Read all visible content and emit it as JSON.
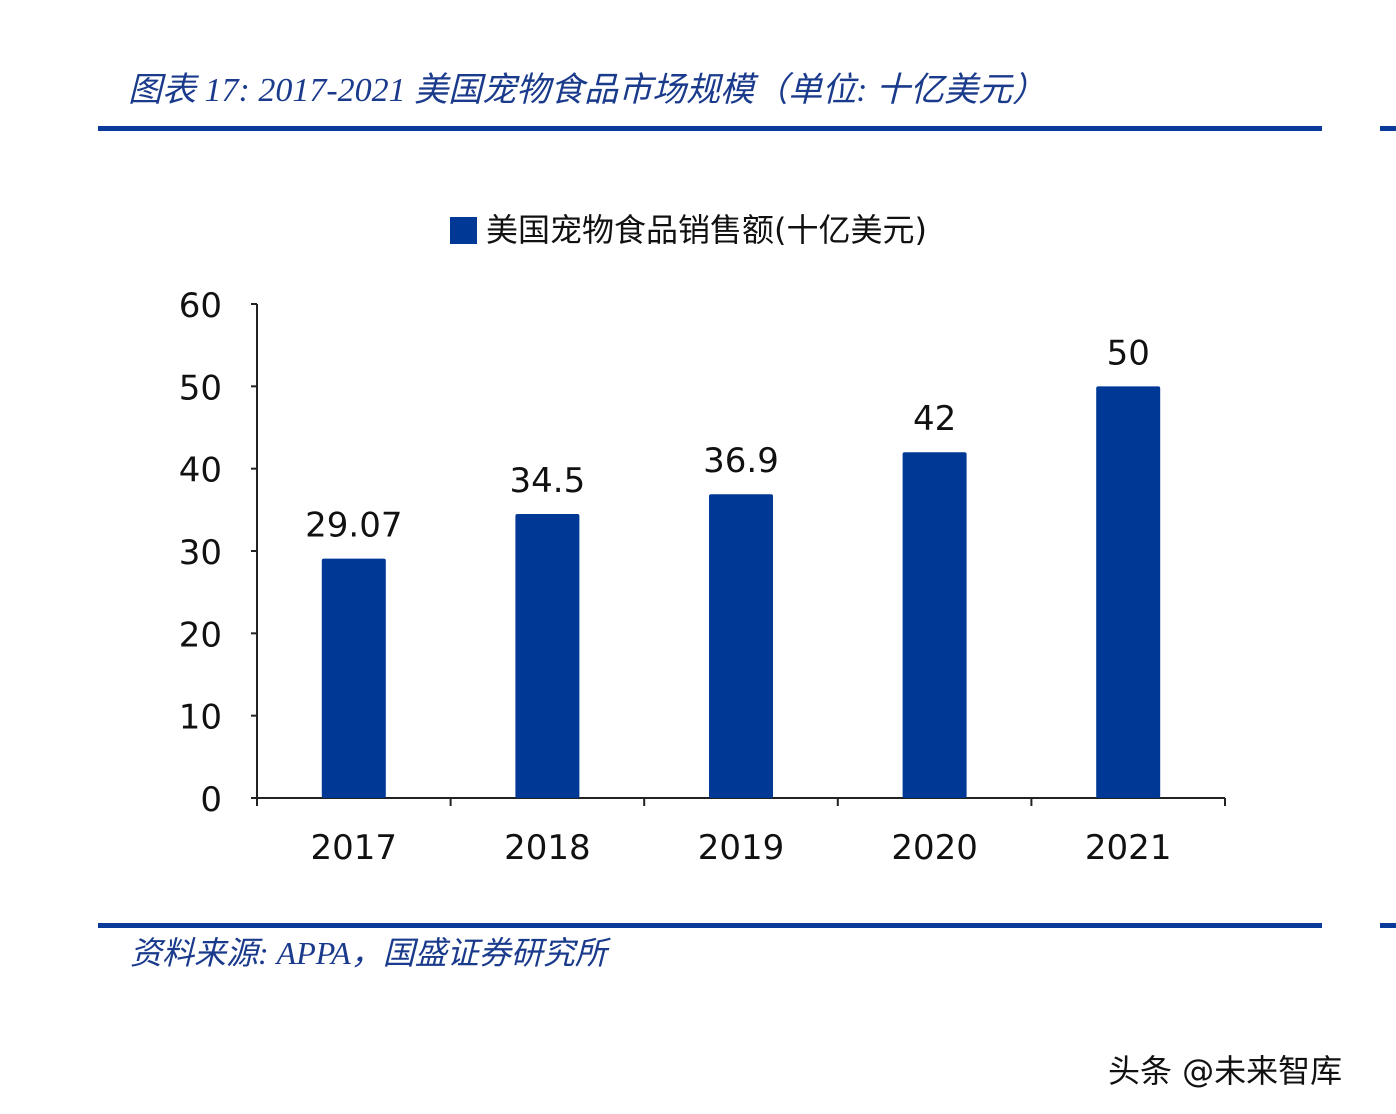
{
  "header": {
    "title": "图表 17:  2017-2021 美国宠物食品市场规模（单位:  十亿美元）"
  },
  "footer": {
    "source": "资料来源:  APPA，国盛证券研究所",
    "watermark": "头条 @未来智库"
  },
  "colors": {
    "bar": "#003896",
    "rule": "#0a3a9a",
    "title": "#1a3a8c"
  },
  "chart_data": {
    "type": "bar",
    "title": "",
    "categories": [
      "2017",
      "2018",
      "2019",
      "2020",
      "2021"
    ],
    "series": [
      {
        "name": "美国宠物食品销售额(十亿美元)",
        "values": [
          29.07,
          34.5,
          36.9,
          42,
          50
        ]
      }
    ],
    "data_labels": [
      "29.07",
      "34.5",
      "36.9",
      "42",
      "50"
    ],
    "ylim": [
      0,
      60
    ],
    "yticks": [
      0,
      10,
      20,
      30,
      40,
      50,
      60
    ],
    "xlabel": "",
    "ylabel": "",
    "legend_position": "top-center",
    "grid": false
  }
}
